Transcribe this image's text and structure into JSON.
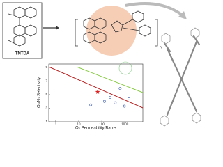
{
  "monomer_label": "TNTDA",
  "polymer_repeat": "n",
  "chart_data": {
    "type": "scatter",
    "x_label": "O₂ Permeability/Barrer",
    "y_label": "O₂/N₂ Selectivity",
    "log_x": true,
    "xlim": [
      0.5,
      6000
    ],
    "xticks": [
      1,
      10,
      100,
      1000
    ],
    "ylim": [
      1,
      9.5
    ],
    "yticks": [
      1,
      3,
      5,
      7,
      9
    ],
    "series": [
      {
        "color": "#d22",
        "marker": "star",
        "x": [
          66
        ],
        "values": [
          5.4
        ]
      },
      {
        "color": "#3355aa",
        "marker": "circle",
        "x": [
          33,
          130,
          230,
          380,
          620,
          950,
          1500
        ],
        "values": [
          3.5,
          4.0,
          4.6,
          3.8,
          5.9,
          3.3,
          4.4
        ]
      }
    ]
  }
}
